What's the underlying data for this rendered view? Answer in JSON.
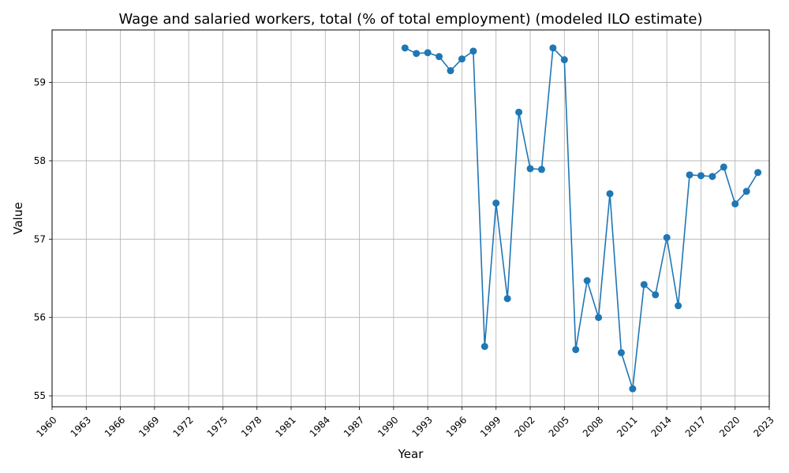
{
  "chart_data": {
    "type": "line",
    "title": "Wage and salaried workers, total (% of total employment) (modeled ILO estimate)",
    "xlabel": "Year",
    "ylabel": "Value",
    "xlim": [
      1960,
      2023
    ],
    "ylim": [
      54.86,
      59.67
    ],
    "xticks": [
      1960,
      1963,
      1966,
      1969,
      1972,
      1975,
      1978,
      1981,
      1984,
      1987,
      1990,
      1993,
      1996,
      1999,
      2002,
      2005,
      2008,
      2011,
      2014,
      2017,
      2020,
      2023
    ],
    "yticks": [
      55,
      56,
      57,
      58,
      59
    ],
    "grid": true,
    "series_color": "#1f77b4",
    "series": [
      {
        "x": [
          1991,
          1992,
          1993,
          1994,
          1995,
          1996,
          1997,
          1998,
          1999,
          2000,
          2001,
          2002,
          2003,
          2004,
          2005,
          2006,
          2007,
          2008,
          2009,
          2010,
          2011,
          2012,
          2013,
          2014,
          2015,
          2016,
          2017,
          2018,
          2019,
          2020,
          2021,
          2022
        ],
        "values": [
          59.44,
          59.37,
          59.38,
          59.33,
          59.15,
          59.3,
          59.4,
          55.63,
          57.46,
          56.24,
          58.62,
          57.9,
          57.89,
          59.44,
          59.29,
          55.59,
          56.47,
          56.0,
          57.58,
          55.55,
          55.09,
          56.42,
          56.29,
          57.02,
          56.15,
          57.82,
          57.81,
          57.8,
          57.92,
          57.45,
          57.61,
          57.85
        ]
      }
    ]
  }
}
